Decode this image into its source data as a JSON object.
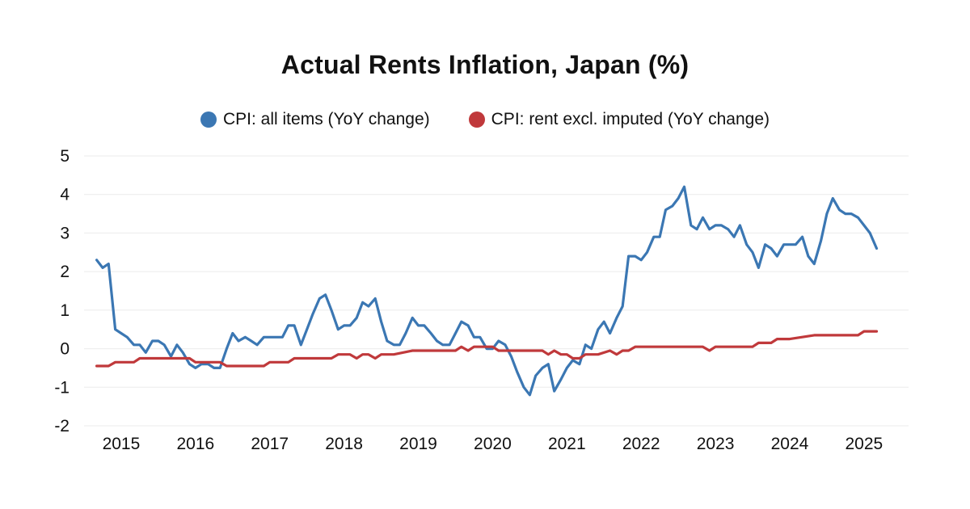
{
  "chart_data": {
    "type": "line",
    "title": "Actual Rents Inflation, Japan (%)",
    "xlabel": "",
    "ylabel": "",
    "ylim": [
      -2,
      5
    ],
    "yticks": [
      "5",
      "4",
      "3",
      "2",
      "1",
      "0",
      "-1",
      "-2"
    ],
    "ytick_values": [
      5,
      4,
      3,
      2,
      1,
      0,
      -1,
      -2
    ],
    "xticks": [
      "2015",
      "2016",
      "2017",
      "2018",
      "2019",
      "2020",
      "2021",
      "2022",
      "2023",
      "2024",
      "2025"
    ],
    "xtick_values": [
      2015,
      2016,
      2017,
      2018,
      2019,
      2020,
      2021,
      2022,
      2023,
      2024,
      2025
    ],
    "xlim": [
      2014.5,
      2025.6
    ],
    "grid": true,
    "legend": "top-center",
    "series": [
      {
        "name": "CPI: all items (YoY change)",
        "color": "#3b77b3",
        "x": [
          2014.67,
          2014.75,
          2014.83,
          2014.92,
          2015.0,
          2015.08,
          2015.17,
          2015.25,
          2015.33,
          2015.42,
          2015.5,
          2015.58,
          2015.67,
          2015.75,
          2015.83,
          2015.92,
          2016.0,
          2016.08,
          2016.17,
          2016.25,
          2016.33,
          2016.42,
          2016.5,
          2016.58,
          2016.67,
          2016.75,
          2016.83,
          2016.92,
          2017.0,
          2017.08,
          2017.17,
          2017.25,
          2017.33,
          2017.42,
          2017.5,
          2017.58,
          2017.67,
          2017.75,
          2017.83,
          2017.92,
          2018.0,
          2018.08,
          2018.17,
          2018.25,
          2018.33,
          2018.42,
          2018.5,
          2018.58,
          2018.67,
          2018.75,
          2018.83,
          2018.92,
          2019.0,
          2019.08,
          2019.17,
          2019.25,
          2019.33,
          2019.42,
          2019.5,
          2019.58,
          2019.67,
          2019.75,
          2019.83,
          2019.92,
          2020.0,
          2020.08,
          2020.17,
          2020.25,
          2020.33,
          2020.42,
          2020.5,
          2020.58,
          2020.67,
          2020.75,
          2020.83,
          2020.92,
          2021.0,
          2021.08,
          2021.17,
          2021.25,
          2021.33,
          2021.42,
          2021.5,
          2021.58,
          2021.67,
          2021.75,
          2021.83,
          2021.92,
          2022.0,
          2022.08,
          2022.17,
          2022.25,
          2022.33,
          2022.42,
          2022.5,
          2022.58,
          2022.67,
          2022.75,
          2022.83,
          2022.92,
          2023.0,
          2023.08,
          2023.17,
          2023.25,
          2023.33,
          2023.42,
          2023.5,
          2023.58,
          2023.67,
          2023.75,
          2023.83,
          2023.92,
          2024.0,
          2024.08,
          2024.17,
          2024.25,
          2024.33,
          2024.42,
          2024.5,
          2024.58,
          2024.67,
          2024.75,
          2024.83,
          2024.92,
          2025.0,
          2025.08,
          2025.17
        ],
        "values": [
          2.3,
          2.1,
          2.2,
          0.5,
          0.4,
          0.3,
          0.1,
          0.1,
          -0.1,
          0.2,
          0.2,
          0.1,
          -0.2,
          0.1,
          -0.1,
          -0.4,
          -0.5,
          -0.4,
          -0.4,
          -0.5,
          -0.5,
          0.0,
          0.4,
          0.2,
          0.3,
          0.2,
          0.1,
          0.3,
          0.3,
          0.3,
          0.3,
          0.6,
          0.6,
          0.1,
          0.5,
          0.9,
          1.3,
          1.4,
          1.0,
          0.5,
          0.6,
          0.6,
          0.8,
          1.2,
          1.1,
          1.3,
          0.7,
          0.2,
          0.1,
          0.1,
          0.4,
          0.8,
          0.6,
          0.6,
          0.4,
          0.2,
          0.1,
          0.1,
          0.4,
          0.7,
          0.6,
          0.3,
          0.3,
          0.0,
          0.0,
          0.2,
          0.1,
          -0.2,
          -0.6,
          -1.0,
          -1.2,
          -0.7,
          -0.5,
          -0.4,
          -1.1,
          -0.8,
          -0.5,
          -0.3,
          -0.4,
          0.1,
          0.0,
          0.5,
          0.7,
          0.4,
          0.8,
          1.1,
          2.4,
          2.4,
          2.3,
          2.5,
          2.9,
          2.9,
          3.6,
          3.7,
          3.9,
          4.2,
          3.2,
          3.1,
          3.4,
          3.1,
          3.2,
          3.2,
          3.1,
          2.9,
          3.2,
          2.7,
          2.5,
          2.1,
          2.7,
          2.6,
          2.4,
          2.7,
          2.7,
          2.7,
          2.9,
          2.4,
          2.2,
          2.8,
          3.5,
          3.9,
          3.6,
          3.5,
          3.5,
          3.4,
          3.2,
          3.0,
          2.6
        ]
      },
      {
        "name": "CPI: rent excl. imputed (YoY change)",
        "color": "#c0393b",
        "x": [
          2014.67,
          2014.83,
          2014.92,
          2015.17,
          2015.25,
          2015.92,
          2016.0,
          2016.33,
          2016.42,
          2016.92,
          2017.0,
          2017.25,
          2017.33,
          2017.83,
          2017.92,
          2018.08,
          2018.17,
          2018.25,
          2018.33,
          2018.42,
          2018.5,
          2018.58,
          2018.67,
          2018.92,
          2019.0,
          2019.5,
          2019.58,
          2019.67,
          2019.75,
          2020.0,
          2020.08,
          2020.42,
          2020.5,
          2020.67,
          2020.75,
          2020.83,
          2020.92,
          2021.0,
          2021.08,
          2021.17,
          2021.25,
          2021.33,
          2021.42,
          2021.58,
          2021.67,
          2021.75,
          2021.83,
          2021.92,
          2022.0,
          2022.83,
          2022.92,
          2023.0,
          2023.5,
          2023.58,
          2023.75,
          2023.83,
          2024.0,
          2024.33,
          2024.42,
          2024.92,
          2025.0,
          2025.17
        ],
        "values": [
          -0.45,
          -0.45,
          -0.35,
          -0.35,
          -0.25,
          -0.25,
          -0.35,
          -0.35,
          -0.45,
          -0.45,
          -0.35,
          -0.35,
          -0.25,
          -0.25,
          -0.15,
          -0.15,
          -0.25,
          -0.15,
          -0.15,
          -0.25,
          -0.15,
          -0.15,
          -0.15,
          -0.05,
          -0.05,
          -0.05,
          0.05,
          -0.05,
          0.05,
          0.05,
          -0.05,
          -0.05,
          -0.05,
          -0.05,
          -0.15,
          -0.05,
          -0.15,
          -0.15,
          -0.25,
          -0.25,
          -0.15,
          -0.15,
          -0.15,
          -0.05,
          -0.15,
          -0.05,
          -0.05,
          0.05,
          0.05,
          0.05,
          -0.05,
          0.05,
          0.05,
          0.15,
          0.15,
          0.25,
          0.25,
          0.35,
          0.35,
          0.35,
          0.45,
          0.45
        ]
      }
    ]
  },
  "legend": {
    "items": [
      {
        "label": "CPI: all items (YoY change)",
        "color": "#3b77b3"
      },
      {
        "label": "CPI: rent excl. imputed (YoY change)",
        "color": "#c0393b"
      }
    ]
  }
}
